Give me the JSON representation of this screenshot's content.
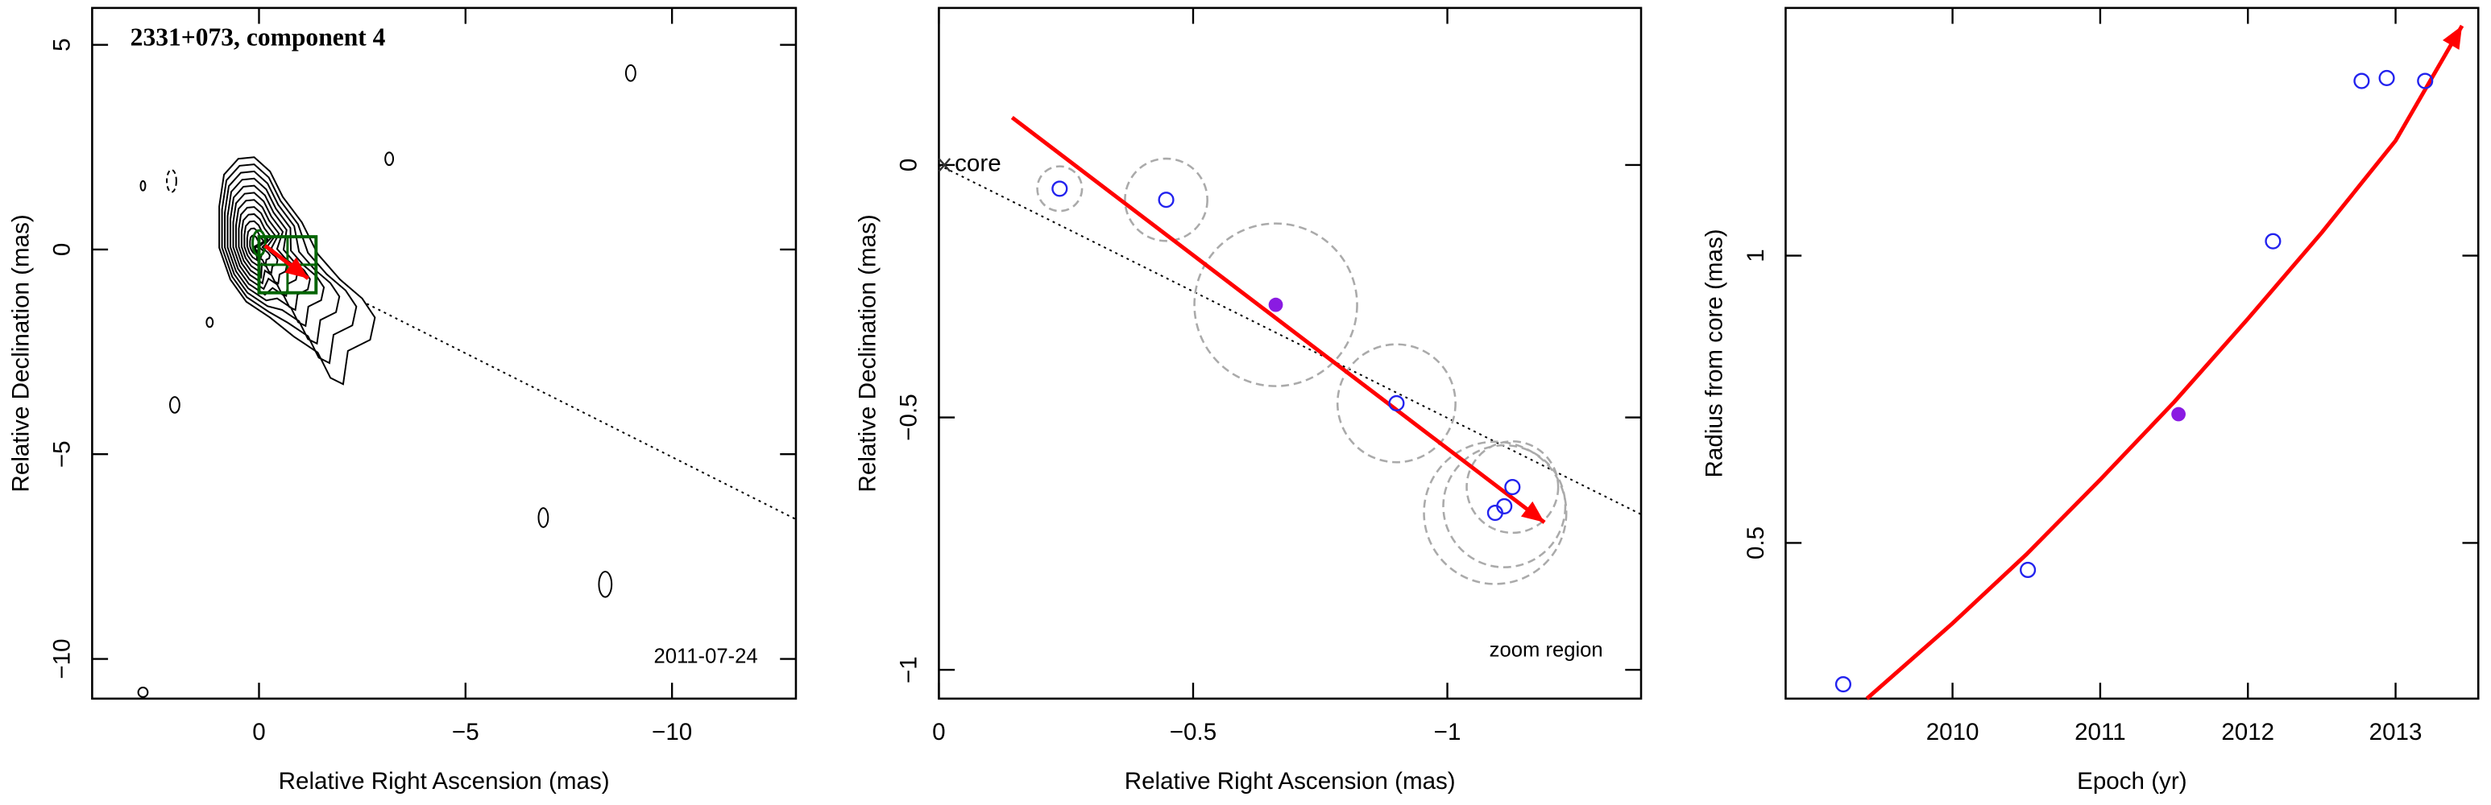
{
  "chart_data": [
    {
      "type": "contour",
      "title": "2331+073, component 4",
      "annotation": "2011-07-24",
      "x_label": "Relative Right Ascension (mas)",
      "y_label": "Relative Declination (mas)",
      "xlim": [
        4.04,
        -13.0
      ],
      "ylim": [
        -10.97,
        5.9
      ],
      "xticks": [
        0,
        {
          "value": -5,
          "label": "−5"
        },
        {
          "value": -10,
          "label": "−10"
        }
      ],
      "yticks": [
        {
          "value": -10,
          "label": "−10"
        },
        {
          "value": -5,
          "label": "−5"
        },
        0,
        5
      ],
      "trend_line": {
        "x": [
          0,
          -13.0
        ],
        "y": [
          0,
          -6.59
        ]
      },
      "zoom_color": "#006400",
      "arrow_color": "#ff0000"
    },
    {
      "type": "scatter",
      "annotation": "zoom region",
      "core_label": "core",
      "x_label": "Relative Right Ascension (mas)",
      "y_label": "Relative Declination (mas)",
      "xlim": [
        0,
        -1.381
      ],
      "ylim": [
        -1.057,
        0.311
      ],
      "xticks": [
        0,
        {
          "value": -0.5,
          "label": "−0.5"
        },
        {
          "value": -1,
          "label": "−1"
        }
      ],
      "yticks": [
        {
          "value": -1,
          "label": "−1"
        },
        {
          "value": -0.5,
          "label": "−0.5"
        },
        0
      ],
      "trend_line": {
        "x": [
          0,
          -1.381
        ],
        "y": [
          0,
          -0.692
        ]
      },
      "arrow": {
        "x": [
          -0.144,
          -1.191
        ],
        "y": [
          0.094,
          -0.708
        ]
      },
      "x": [
        -0.2375,
        -0.447,
        -0.9,
        -1.094,
        -1.112,
        -1.128
      ],
      "y": [
        -0.047,
        -0.069,
        -0.472,
        -0.689,
        -0.676,
        -0.638
      ],
      "radii": [
        0.044,
        0.081,
        0.116,
        0.14,
        0.12,
        0.09
      ],
      "highlight": {
        "x": -0.6625,
        "y": -0.277,
        "radius": 0.16
      },
      "color": "#2222ee",
      "highlight_color": "#8a1be2",
      "arrow_color": "#ff0000"
    },
    {
      "type": "scatter",
      "x_label": "Epoch (yr)",
      "y_label": "Radius from core (mas)",
      "xlim": [
        2008.87,
        2013.56
      ],
      "ylim": [
        0.229,
        1.431
      ],
      "xticks": [
        2010,
        2011,
        2012,
        2013
      ],
      "yticks": [
        0.5,
        1
      ],
      "x": [
        2009.26,
        2010.51,
        2012.17,
        2012.77,
        2012.94,
        2013.2
      ],
      "y": [
        0.254,
        0.453,
        1.025,
        1.304,
        1.309,
        1.304
      ],
      "highlight": {
        "x": 2011.53,
        "y": 0.724
      },
      "fit": {
        "x": [
          2009.42,
          2010,
          2010.5,
          2011,
          2011.5,
          2012,
          2012.5,
          2013,
          2013.45
        ],
        "y": [
          0.229,
          0.36,
          0.48,
          0.61,
          0.745,
          0.89,
          1.04,
          1.2,
          1.4
        ]
      },
      "color": "#2222ee",
      "highlight_color": "#8a1be2",
      "arrow_color": "#ff0000"
    }
  ]
}
